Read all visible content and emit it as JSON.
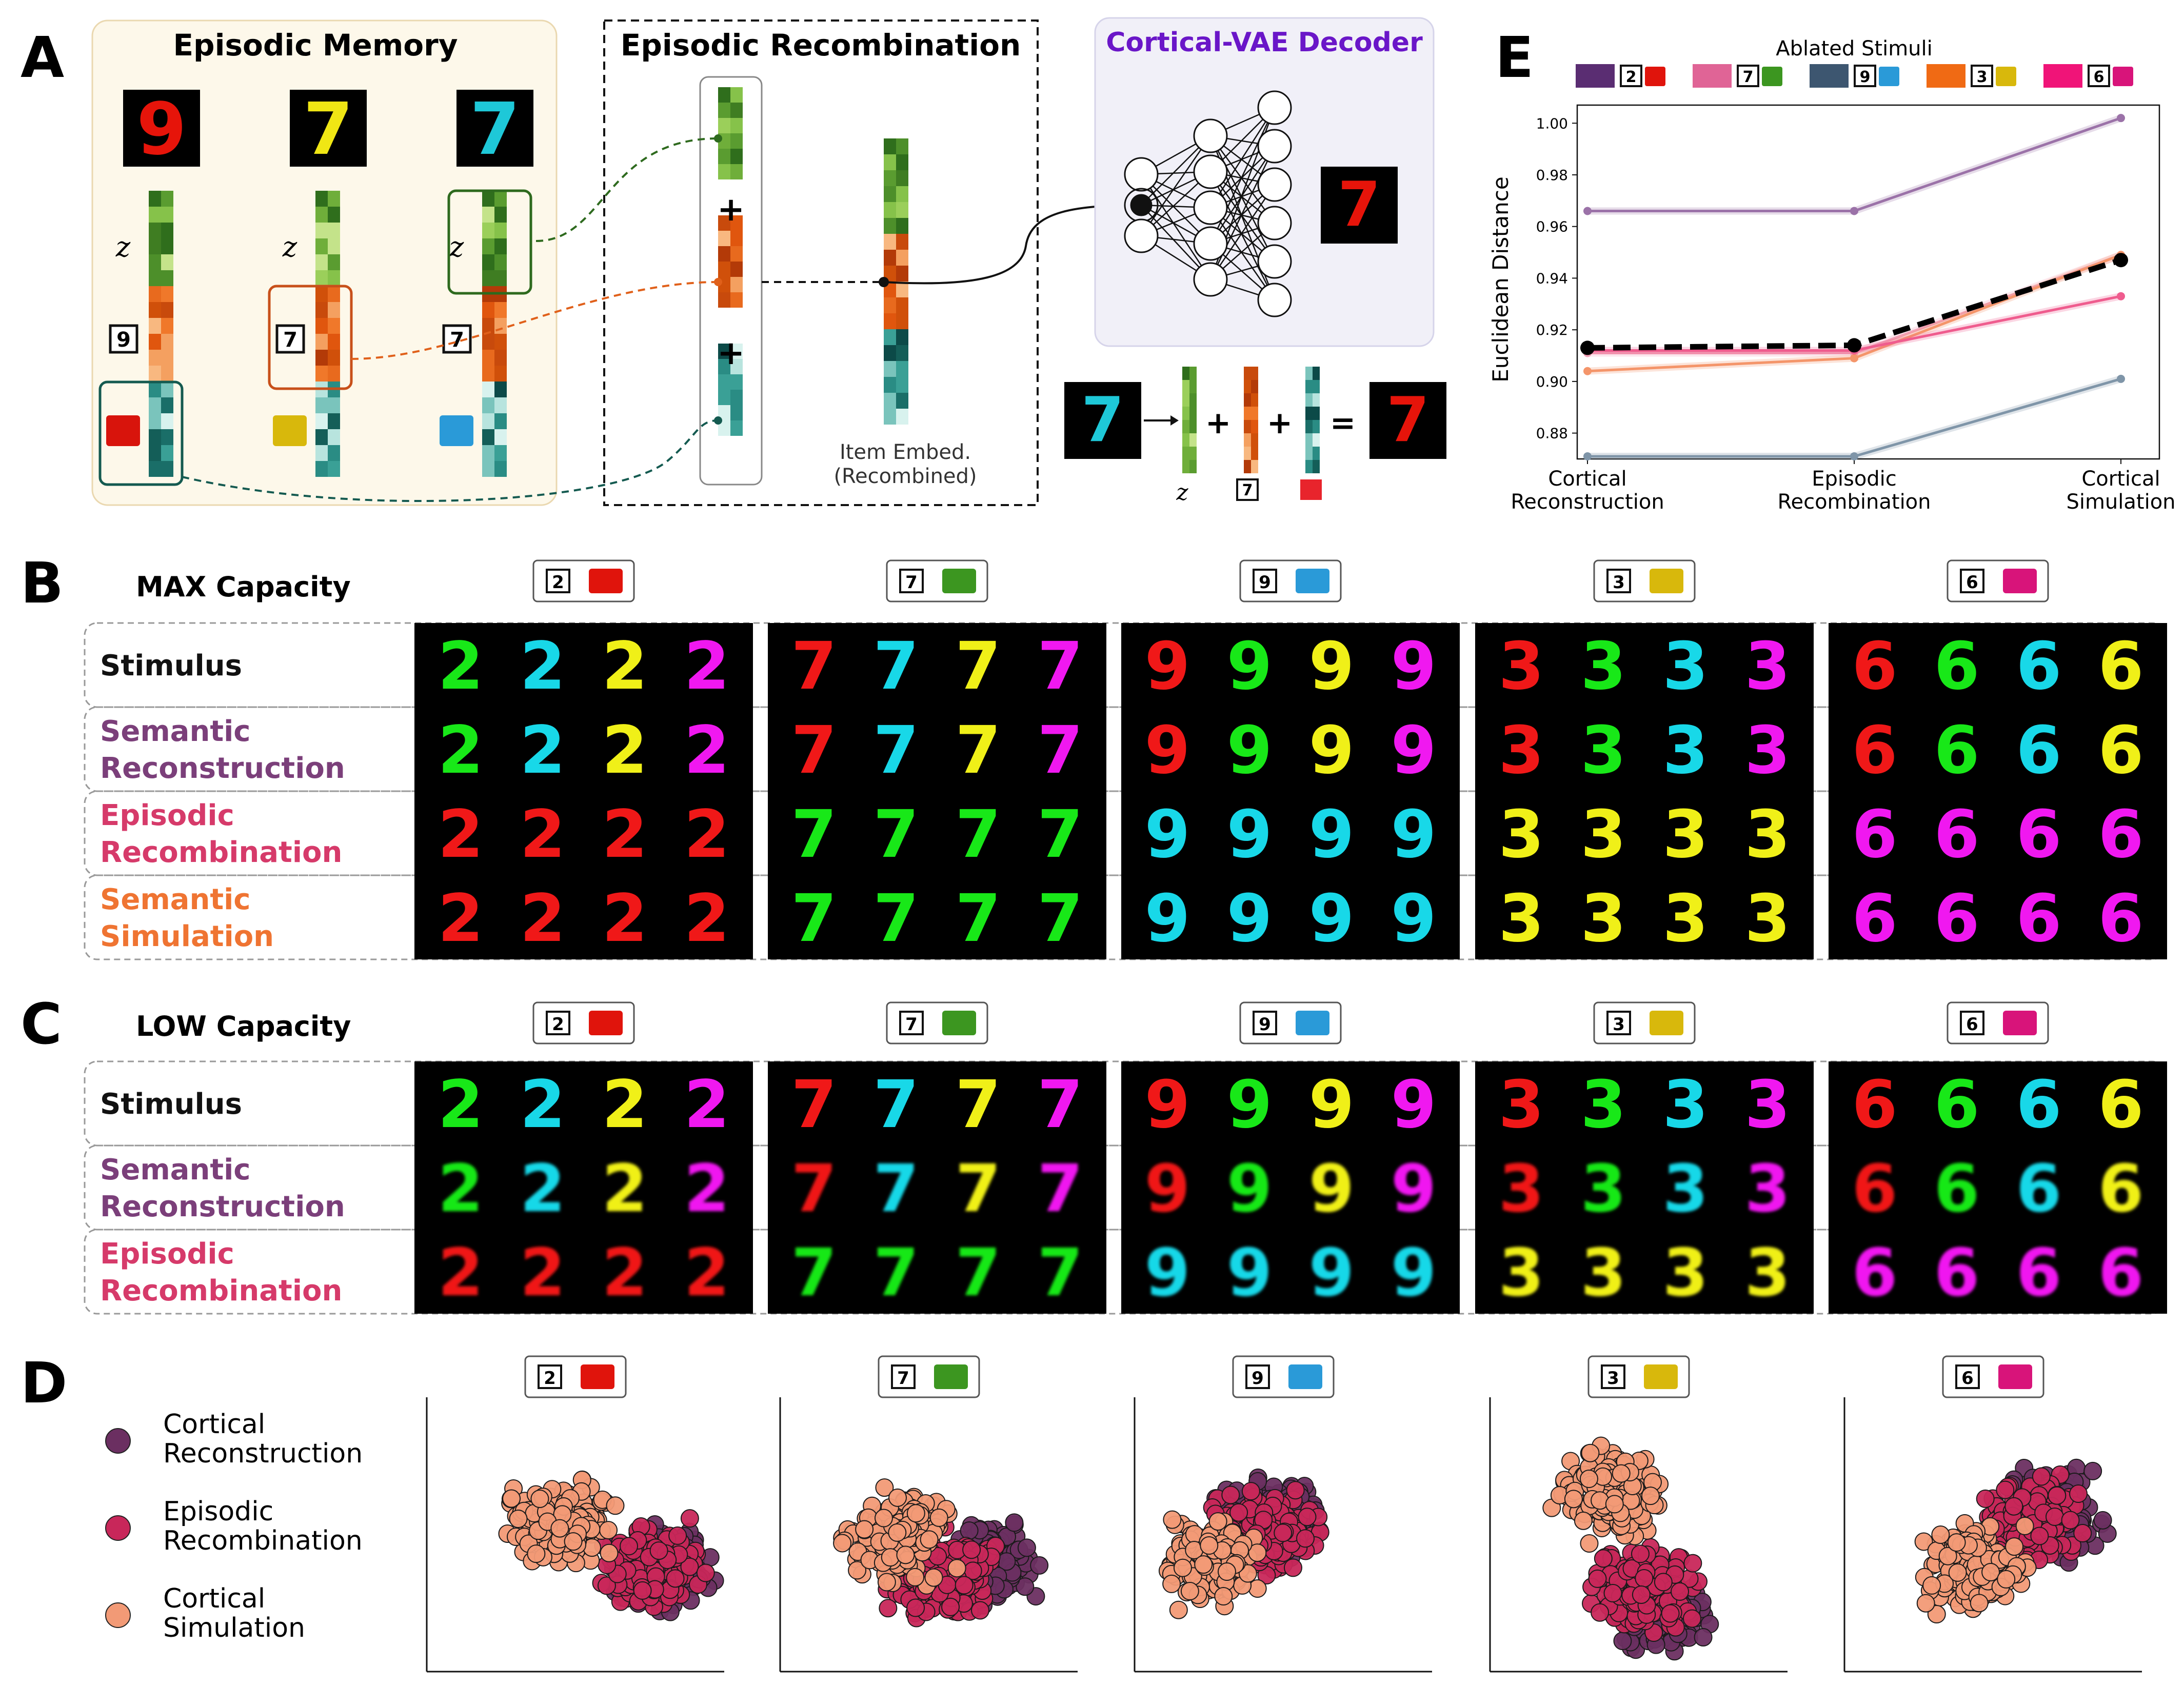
{
  "panel_letters": {
    "a": "A",
    "b": "B",
    "c": "C",
    "d": "D",
    "e": "E"
  },
  "panel_a": {
    "episodic_memory_title": "Episodic Memory",
    "episodic_recombination_title": "Episodic Recombination",
    "decoder_title": "Cortical-VAE Decoder",
    "z_label": "z",
    "memory_items": [
      {
        "digit": "9",
        "digit_color": "#e6140a",
        "color_chip": "#d8140c"
      },
      {
        "digit": "7",
        "digit_color": "#f0e614",
        "color_chip": "#d8b80c"
      },
      {
        "digit": "7",
        "digit_color": "#1ec8d8",
        "color_chip": "#2a9ad8"
      }
    ],
    "plus_1": "+",
    "plus_2": "+",
    "item_embed_label_1": "Item Embed.",
    "item_embed_label_2": "(Recombined)",
    "decoder_output_digit": "7",
    "decoder_output_color": "#e6140a",
    "equation": {
      "input_digit": "7",
      "input_color": "#1ec8d8",
      "plus_1": "+",
      "plus_2": "+",
      "equals": "=",
      "output_digit": "7",
      "output_color": "#e6140a",
      "z_label": "z",
      "digit_tag": "7"
    }
  },
  "panel_b": {
    "title": "MAX Capacity",
    "rows": [
      "Stimulus",
      "Semantic Reconstruction",
      "Episodic Recombination",
      "Semantic Simulation"
    ],
    "row_lines": [
      [
        "Stimulus"
      ],
      [
        "Semantic",
        "Reconstruction"
      ],
      [
        "Episodic",
        "Recombination"
      ],
      [
        "Semantic",
        "Simulation"
      ]
    ],
    "row_colors": [
      "#111111",
      "#7b3f7a",
      "#d63a6a",
      "#ef7432"
    ]
  },
  "panel_c": {
    "title": "LOW Capacity",
    "rows": [
      "Stimulus",
      "Semantic Reconstruction",
      "Episodic Recombination"
    ],
    "row_lines": [
      [
        "Stimulus"
      ],
      [
        "Semantic",
        "Reconstruction"
      ],
      [
        "Episodic",
        "Recombination"
      ]
    ],
    "row_colors": [
      "#111111",
      "#7b3f7a",
      "#d63a6a"
    ]
  },
  "conditions": [
    {
      "digit": "2",
      "chip": "#e0140c"
    },
    {
      "digit": "7",
      "chip": "#3c9620"
    },
    {
      "digit": "9",
      "chip": "#2a9ad8"
    },
    {
      "digit": "3",
      "chip": "#d8b80c"
    },
    {
      "digit": "6",
      "chip": "#d8147a"
    }
  ],
  "sample_colors": {
    "b": [
      [
        [
          "#18e818",
          "#18d8e8",
          "#f0f018",
          "#f018f0"
        ],
        [
          "#18e818",
          "#18d8e8",
          "#f0f018",
          "#f018f0"
        ],
        [
          "#f01818",
          "#f01818",
          "#f01818",
          "#f01818"
        ],
        [
          "#f01818",
          "#f01818",
          "#f01818",
          "#f01818"
        ]
      ],
      [
        [
          "#f01818",
          "#18d8e8",
          "#f0f018",
          "#f018f0"
        ],
        [
          "#f01818",
          "#18d8e8",
          "#f0f018",
          "#f018f0"
        ],
        [
          "#18e818",
          "#18e818",
          "#18e818",
          "#18e818"
        ],
        [
          "#18e818",
          "#18e818",
          "#18e818",
          "#18e818"
        ]
      ],
      [
        [
          "#f01818",
          "#18e818",
          "#f0f018",
          "#f018f0"
        ],
        [
          "#f01818",
          "#18e818",
          "#f0f018",
          "#f018f0"
        ],
        [
          "#18d8e8",
          "#18d8e8",
          "#18d8e8",
          "#18d8e8"
        ],
        [
          "#18d8e8",
          "#18d8e8",
          "#18d8e8",
          "#18d8e8"
        ]
      ],
      [
        [
          "#f01818",
          "#18e818",
          "#18d8e8",
          "#f018f0"
        ],
        [
          "#f01818",
          "#18e818",
          "#18d8e8",
          "#f018f0"
        ],
        [
          "#f0f018",
          "#f0f018",
          "#f0f018",
          "#f0f018"
        ],
        [
          "#f0f018",
          "#f0f018",
          "#f0f018",
          "#f0f018"
        ]
      ],
      [
        [
          "#f01818",
          "#18e818",
          "#18d8e8",
          "#f0f018"
        ],
        [
          "#f01818",
          "#18e818",
          "#18d8e8",
          "#f0f018"
        ],
        [
          "#f018f0",
          "#f018f0",
          "#f018f0",
          "#f018f0"
        ],
        [
          "#f018f0",
          "#f018f0",
          "#f018f0",
          "#f018f0"
        ]
      ]
    ],
    "c": [
      [
        [
          "#18e818",
          "#18d8e8",
          "#f0f018",
          "#f018f0"
        ],
        [
          "#18e818",
          "#18d8e8",
          "#f0f018",
          "#f018f0"
        ],
        [
          "#f01818",
          "#f01818",
          "#f01818",
          "#f01818"
        ]
      ],
      [
        [
          "#f01818",
          "#18d8e8",
          "#f0f018",
          "#f018f0"
        ],
        [
          "#f01818",
          "#18d8e8",
          "#f0f018",
          "#f018f0"
        ],
        [
          "#18e818",
          "#18e818",
          "#18e818",
          "#18e818"
        ]
      ],
      [
        [
          "#f01818",
          "#18e818",
          "#f0f018",
          "#f018f0"
        ],
        [
          "#f01818",
          "#18e818",
          "#f0f018",
          "#f018f0"
        ],
        [
          "#18d8e8",
          "#18d8e8",
          "#18d8e8",
          "#18d8e8"
        ]
      ],
      [
        [
          "#f01818",
          "#18e818",
          "#18d8e8",
          "#f018f0"
        ],
        [
          "#f01818",
          "#18e818",
          "#18d8e8",
          "#f018f0"
        ],
        [
          "#f0f018",
          "#f0f018",
          "#f0f018",
          "#f0f018"
        ]
      ],
      [
        [
          "#f01818",
          "#18e818",
          "#18d8e8",
          "#f0f018"
        ],
        [
          "#f01818",
          "#18e818",
          "#18d8e8",
          "#f0f018"
        ],
        [
          "#f018f0",
          "#f018f0",
          "#f018f0",
          "#f018f0"
        ]
      ]
    ]
  },
  "panel_d": {
    "legend": [
      {
        "lines": [
          "Cortical",
          "Reconstruction"
        ],
        "color": "#6b2f61"
      },
      {
        "lines": [
          "Episodic",
          "Recombination"
        ],
        "color": "#c8275a"
      },
      {
        "lines": [
          "Cortical",
          "Simulation"
        ],
        "color": "#f29a76"
      }
    ]
  },
  "chart_data": {
    "type": "line",
    "title": "Ablated Stimuli",
    "xlabel": "",
    "ylabel": "Euclidean Distance",
    "categories": [
      [
        "Cortical",
        "Reconstruction"
      ],
      [
        "Episodic",
        "Recombination"
      ],
      [
        "Cortical",
        "Simulation"
      ]
    ],
    "ylim": [
      0.87,
      1.007
    ],
    "yticks": [
      0.88,
      0.9,
      0.92,
      0.94,
      0.96,
      0.98,
      1.0
    ],
    "ytick_labels": [
      "0.88",
      "0.90",
      "0.92",
      "0.94",
      "0.96",
      "0.98",
      "1.00"
    ],
    "legend_placement": "top",
    "series": [
      {
        "digit": "2",
        "swatch": "#5a2d72",
        "chip": "#e0140c",
        "color": "#9b72a8",
        "values": [
          0.966,
          0.966,
          1.002
        ]
      },
      {
        "digit": "7",
        "swatch": "#e06496",
        "chip": "#3c9620",
        "color": "#f2a0b6",
        "values": [
          0.911,
          0.911,
          0.949
        ]
      },
      {
        "digit": "9",
        "swatch": "#3d5670",
        "chip": "#2a9ad8",
        "color": "#7f95a8",
        "values": [
          0.871,
          0.871,
          0.901
        ]
      },
      {
        "digit": "3",
        "swatch": "#f06a14",
        "chip": "#d8b80c",
        "color": "#f4956a",
        "values": [
          0.904,
          0.909,
          0.949
        ]
      },
      {
        "digit": "6",
        "swatch": "#f01478",
        "chip": "#d8147a",
        "color": "#ef5c8e",
        "values": [
          0.912,
          0.912,
          0.933
        ]
      },
      {
        "digit": "",
        "swatch": "",
        "chip": "",
        "color": "#000000",
        "dashed": true,
        "values": [
          0.913,
          0.914,
          0.947
        ]
      }
    ]
  }
}
